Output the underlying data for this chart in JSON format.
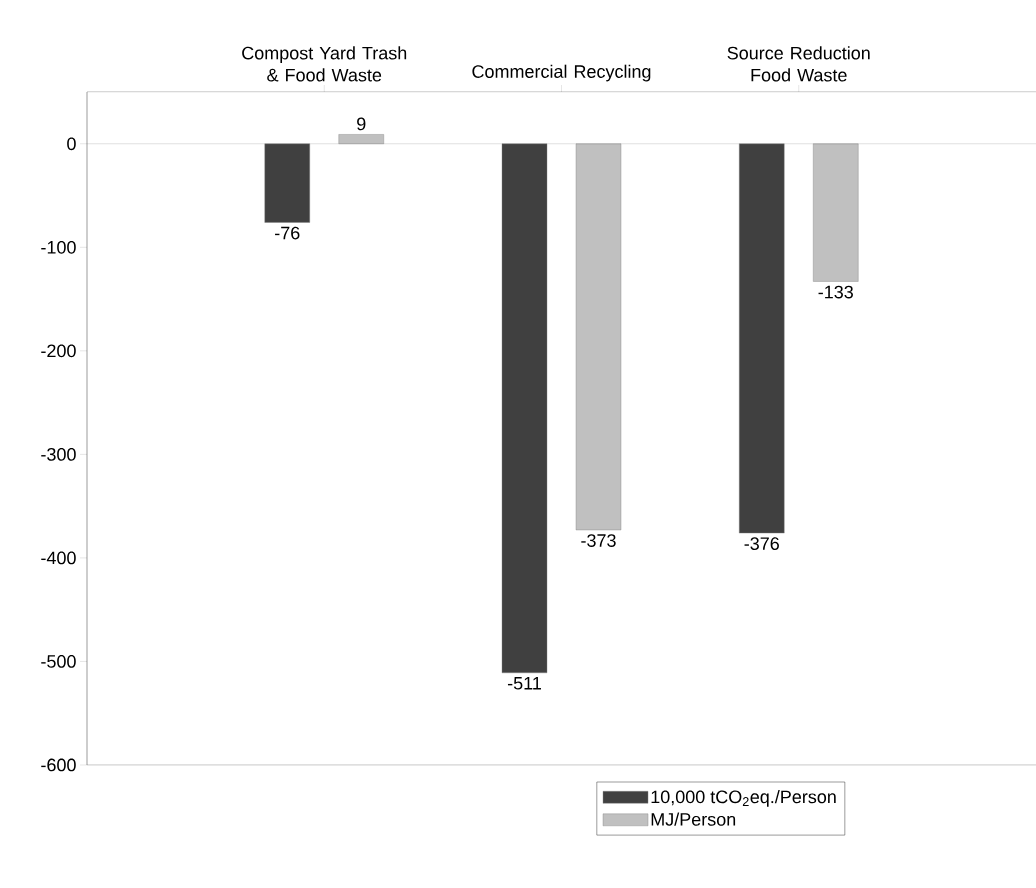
{
  "chart_data": {
    "type": "bar",
    "categories": [
      "Compost Yard Trash & Food Waste",
      "Commercial Recycling",
      "Source Reduction Food Waste"
    ],
    "series": [
      {
        "name": "10,000 tCO$_{2}$eq./Person",
        "color": "#404040",
        "values": [
          -76,
          -511,
          -376
        ]
      },
      {
        "name": "MJ/Person",
        "color": "#c0c0c0",
        "values": [
          9,
          -373,
          -133
        ]
      }
    ],
    "ylim": [
      -600,
      50
    ],
    "yticks": [
      -600,
      -500,
      -400,
      -300,
      -200,
      -100,
      0
    ],
    "data_labels": true,
    "legend": "bottom right"
  }
}
